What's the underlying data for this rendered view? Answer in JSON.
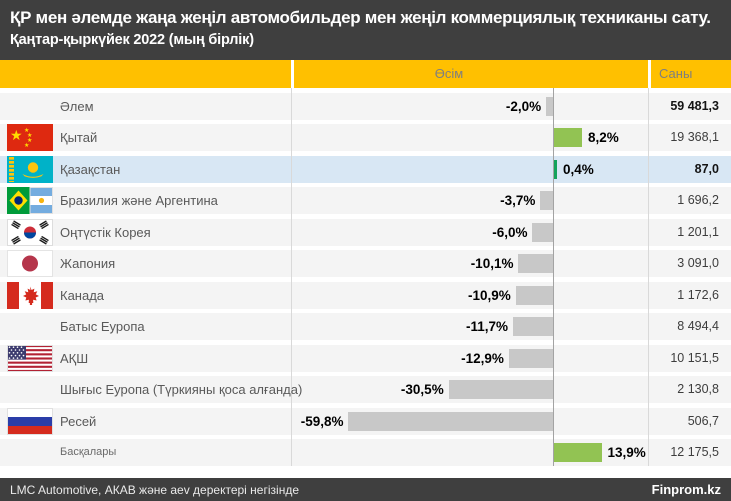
{
  "header": {
    "title": "ҚР мен әлемде жаңа жеңіл автомобильдер мен жеңіл коммерциялық техниканы сату.",
    "subtitle": "Қаңтар-қыркүйек 2022 (мың бірлік)"
  },
  "columns": {
    "growth": "Өсім",
    "count": "Саны"
  },
  "rows": [
    {
      "label": "Әлем",
      "flag": null,
      "growth": -2.0,
      "growth_label": "-2,0%",
      "count": "59 481,3",
      "highlight": false,
      "bold": true,
      "small": false,
      "bar_color": "#C8C8C8"
    },
    {
      "label": "Қытай",
      "flag": "china",
      "growth": 8.2,
      "growth_label": "8,2%",
      "count": "19 368,1",
      "highlight": false,
      "bold": false,
      "small": false,
      "bar_color": "#92C353"
    },
    {
      "label": "Қазақстан",
      "flag": "kazakhstan",
      "growth": 0.4,
      "growth_label": "0,4%",
      "count": "87,0",
      "highlight": true,
      "bold": true,
      "small": false,
      "bar_color": "#14A35B"
    },
    {
      "label": "Бразилия және Аргентина",
      "flag": "brazil-argentina",
      "growth": -3.7,
      "growth_label": "-3,7%",
      "count": "1 696,2",
      "highlight": false,
      "bold": false,
      "small": false,
      "bar_color": "#C8C8C8"
    },
    {
      "label": "Оңтүстік Корея",
      "flag": "south-korea",
      "growth": -6.0,
      "growth_label": "-6,0%",
      "count": "1 201,1",
      "highlight": false,
      "bold": false,
      "small": false,
      "bar_color": "#C8C8C8"
    },
    {
      "label": "Жапония",
      "flag": "japan",
      "growth": -10.1,
      "growth_label": "-10,1%",
      "count": "3 091,0",
      "highlight": false,
      "bold": false,
      "small": false,
      "bar_color": "#C8C8C8"
    },
    {
      "label": "Канада",
      "flag": "canada",
      "growth": -10.9,
      "growth_label": "-10,9%",
      "count": "1 172,6",
      "highlight": false,
      "bold": false,
      "small": false,
      "bar_color": "#C8C8C8"
    },
    {
      "label": "Батыс Еуропа",
      "flag": null,
      "growth": -11.7,
      "growth_label": "-11,7%",
      "count": "8 494,4",
      "highlight": false,
      "bold": false,
      "small": false,
      "bar_color": "#C8C8C8"
    },
    {
      "label": "АҚШ",
      "flag": "usa",
      "growth": -12.9,
      "growth_label": "-12,9%",
      "count": "10 151,5",
      "highlight": false,
      "bold": false,
      "small": false,
      "bar_color": "#C8C8C8"
    },
    {
      "label": "Шығыс Еуропа (Түркияны қоса алғанда)",
      "flag": null,
      "growth": -30.5,
      "growth_label": "-30,5%",
      "count": "2 130,8",
      "highlight": false,
      "bold": false,
      "small": false,
      "bar_color": "#C8C8C8"
    },
    {
      "label": "Ресей",
      "flag": "russia",
      "growth": -59.8,
      "growth_label": "-59,8%",
      "count": "506,7",
      "highlight": false,
      "bold": false,
      "small": false,
      "bar_color": "#C8C8C8"
    },
    {
      "label": "Басқалары",
      "flag": null,
      "growth": 13.9,
      "growth_label": "13,9%",
      "count": "12 175,5",
      "highlight": false,
      "bold": false,
      "small": true,
      "bar_color": "#92C353"
    }
  ],
  "footer": {
    "source": "LMC Automotive, АКАВ және aev деректері негізінде",
    "brand": "Finprom.kz"
  },
  "colors": {
    "accent_yellow": "#FFC000",
    "header_bg": "#3F3F3F",
    "bar_negative": "#C8C8C8",
    "bar_positive": "#92C353",
    "bar_positive_dark": "#14A35B",
    "highlight_row": "#D8E7F4"
  },
  "chart_data": {
    "type": "bar",
    "orientation": "horizontal",
    "title": "ҚР мен әлемде жаңа жеңіл автомобильдер мен жеңіл коммерциялық техниканы сату. Қаңтар-қыркүйек 2022 (мың бірлік)",
    "categories": [
      "Әлем",
      "Қытай",
      "Қазақстан",
      "Бразилия және Аргентина",
      "Оңтүстік Корея",
      "Жапония",
      "Канада",
      "Батыс Еуропа",
      "АҚШ",
      "Шығыс Еуропа (Түркияны қоса алғанда)",
      "Ресей",
      "Басқалары"
    ],
    "series": [
      {
        "name": "Өсім, %",
        "values": [
          -2.0,
          8.2,
          0.4,
          -3.7,
          -6.0,
          -10.1,
          -10.9,
          -11.7,
          -12.9,
          -30.5,
          -59.8,
          13.9
        ]
      },
      {
        "name": "Саны, мың бірлік",
        "values": [
          59481.3,
          19368.1,
          87.0,
          1696.2,
          1201.1,
          3091.0,
          1172.6,
          8494.4,
          10151.5,
          2130.8,
          506.7,
          12175.5
        ]
      }
    ],
    "xlim": [
      -76,
      28
    ],
    "grid": false,
    "legend_position": "none",
    "highlighted_category": "Қазақстан"
  }
}
